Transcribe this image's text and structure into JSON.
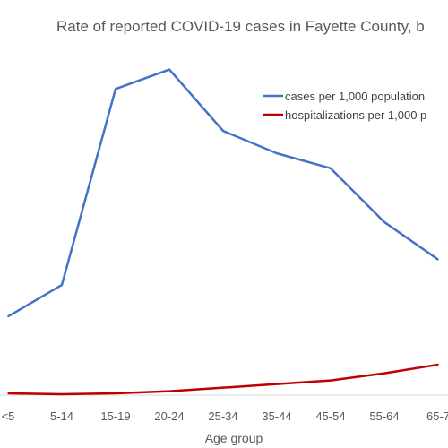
{
  "chart_data": {
    "type": "line",
    "title": "Rate of reported COVID-19 cases in Fayette County, b",
    "xlabel": "Age group",
    "ylabel": "",
    "categories": [
      "<5",
      "5-14",
      "15-19",
      "20-24",
      "25-34",
      "35-44",
      "45-54",
      "55-64",
      "65-7"
    ],
    "ylim": [
      0,
      110
    ],
    "grid": false,
    "legend_position": "top-right",
    "series": [
      {
        "name": "cases per 1,000 population",
        "color": "#4472C4",
        "values": [
          26,
          36.5,
          102,
          108.5,
          88,
          80.5,
          75.5,
          57.5,
          45
        ]
      },
      {
        "name": "hospitalizations per 1,000 p",
        "color": "#C00000",
        "values": [
          0.3,
          0,
          0.3,
          1,
          2.2,
          3.4,
          4.6,
          7,
          9.9
        ]
      }
    ]
  }
}
